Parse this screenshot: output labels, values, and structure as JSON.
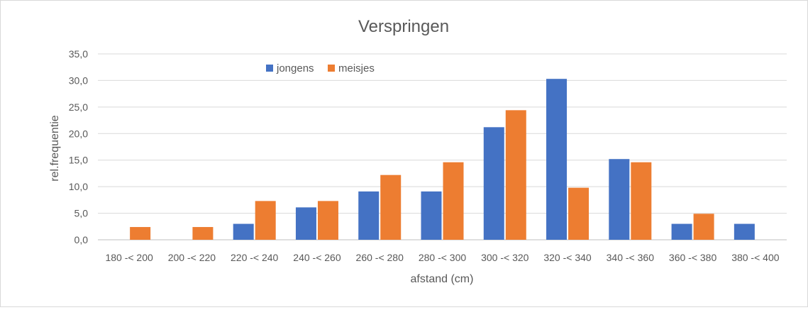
{
  "chart_data": {
    "type": "bar",
    "title": "Verspringen",
    "xlabel": "afstand (cm)",
    "ylabel": "rel.frequentie",
    "ylim": [
      0,
      35
    ],
    "ytick_values": [
      0,
      5,
      10,
      15,
      20,
      25,
      30,
      35
    ],
    "ytick_labels": [
      "0,0",
      "5,0",
      "10,0",
      "15,0",
      "20,0",
      "25,0",
      "30,0",
      "35,0"
    ],
    "grid": true,
    "legend_position": "top",
    "categories": [
      "180 -< 200",
      "200 -< 220",
      "220 -< 240",
      "240 -< 260",
      "260 -< 280",
      "280 -< 300",
      "300 -< 320",
      "320 -< 340",
      "340 -< 360",
      "360 -< 380",
      "380 -< 400"
    ],
    "series": [
      {
        "name": "jongens",
        "color": "#4472c4",
        "values": [
          0,
          0,
          3.0,
          6.1,
          9.1,
          9.1,
          21.2,
          30.3,
          15.2,
          3.0,
          3.0
        ]
      },
      {
        "name": "meisjes",
        "color": "#ed7d31",
        "values": [
          2.4,
          2.4,
          7.3,
          7.3,
          12.2,
          14.6,
          24.4,
          9.8,
          14.6,
          4.9,
          0
        ]
      }
    ]
  }
}
